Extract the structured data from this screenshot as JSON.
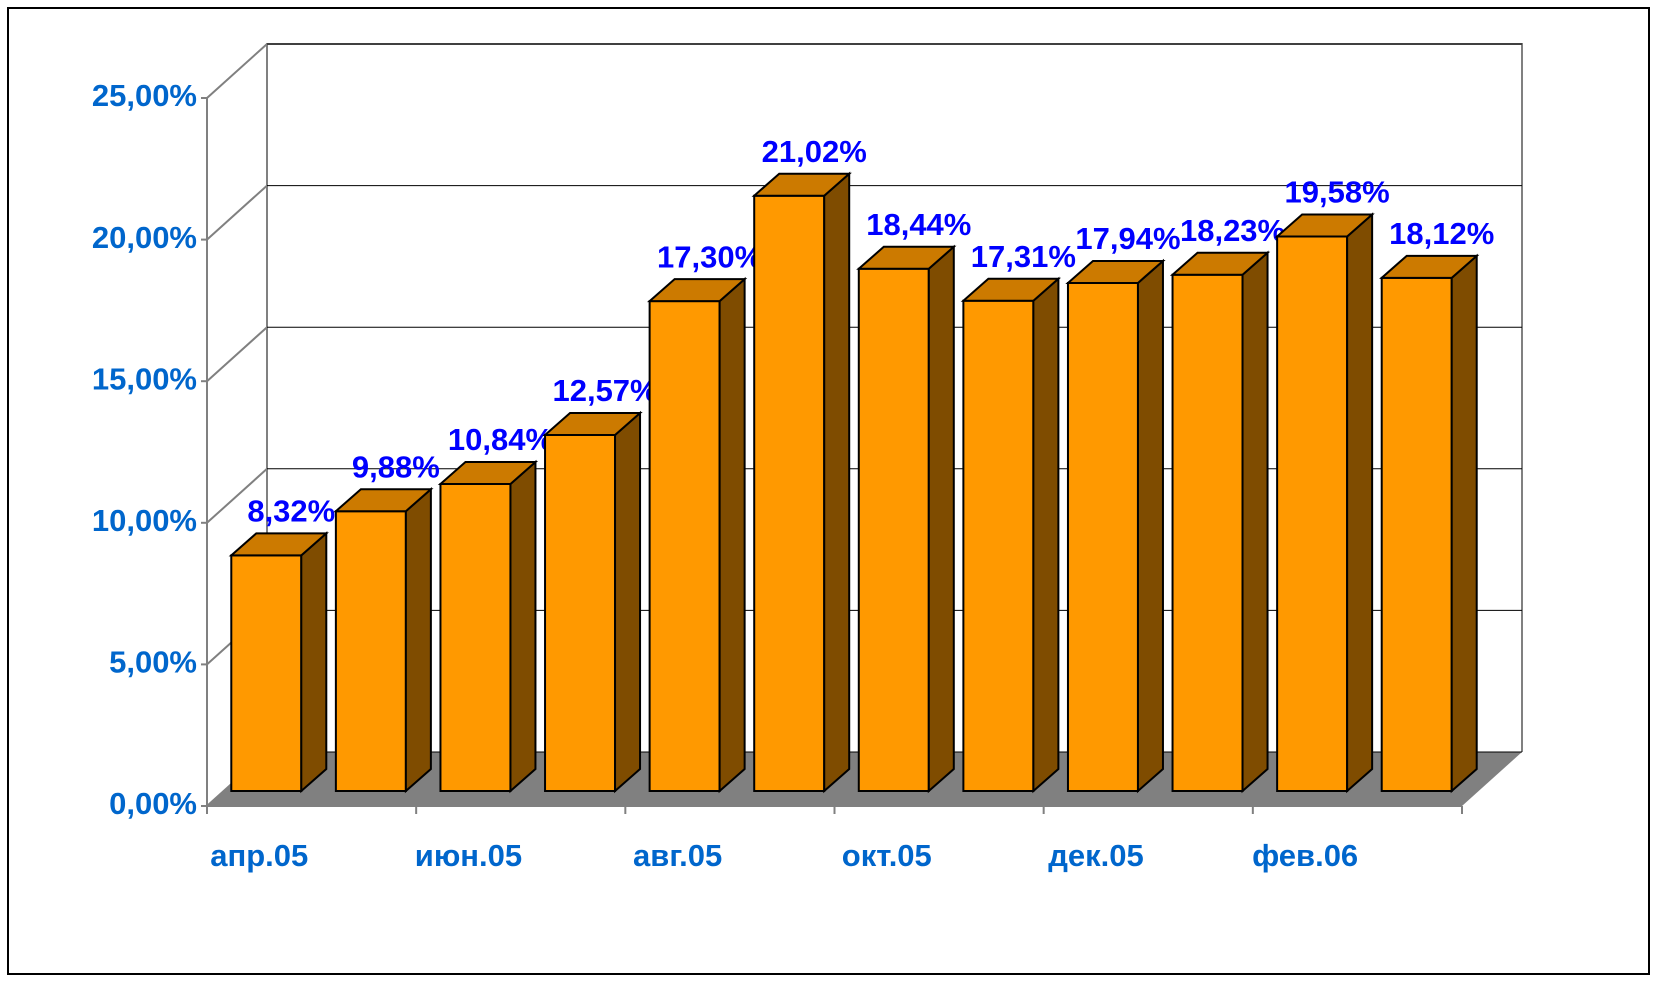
{
  "chart_data": {
    "type": "bar3d",
    "categories": [
      "апр.05",
      null,
      "июн.05",
      null,
      "авг.05",
      null,
      "окт.05",
      null,
      "дек.05",
      null,
      "фев.06",
      null
    ],
    "values": [
      8.32,
      9.88,
      10.84,
      12.57,
      17.3,
      21.02,
      18.44,
      17.31,
      17.94,
      18.23,
      19.58,
      18.12
    ],
    "value_labels": [
      "8,32%",
      "9,88%",
      "10,84%",
      "12,57%",
      "17,30%",
      "21,02%",
      "18,44%",
      "17,31%",
      "17,94%",
      "18,23%",
      "19,58%",
      "18,12%"
    ],
    "color": "#ff9900",
    "ylim": [
      0,
      25
    ],
    "yticks": [
      {
        "value": 0,
        "label": "0,00%"
      },
      {
        "value": 5,
        "label": "5,00%"
      },
      {
        "value": 10,
        "label": "10,00%"
      },
      {
        "value": 15,
        "label": "15,00%"
      },
      {
        "value": 20,
        "label": "20,00%"
      },
      {
        "value": 25,
        "label": "25,00%"
      }
    ],
    "grid": true
  }
}
